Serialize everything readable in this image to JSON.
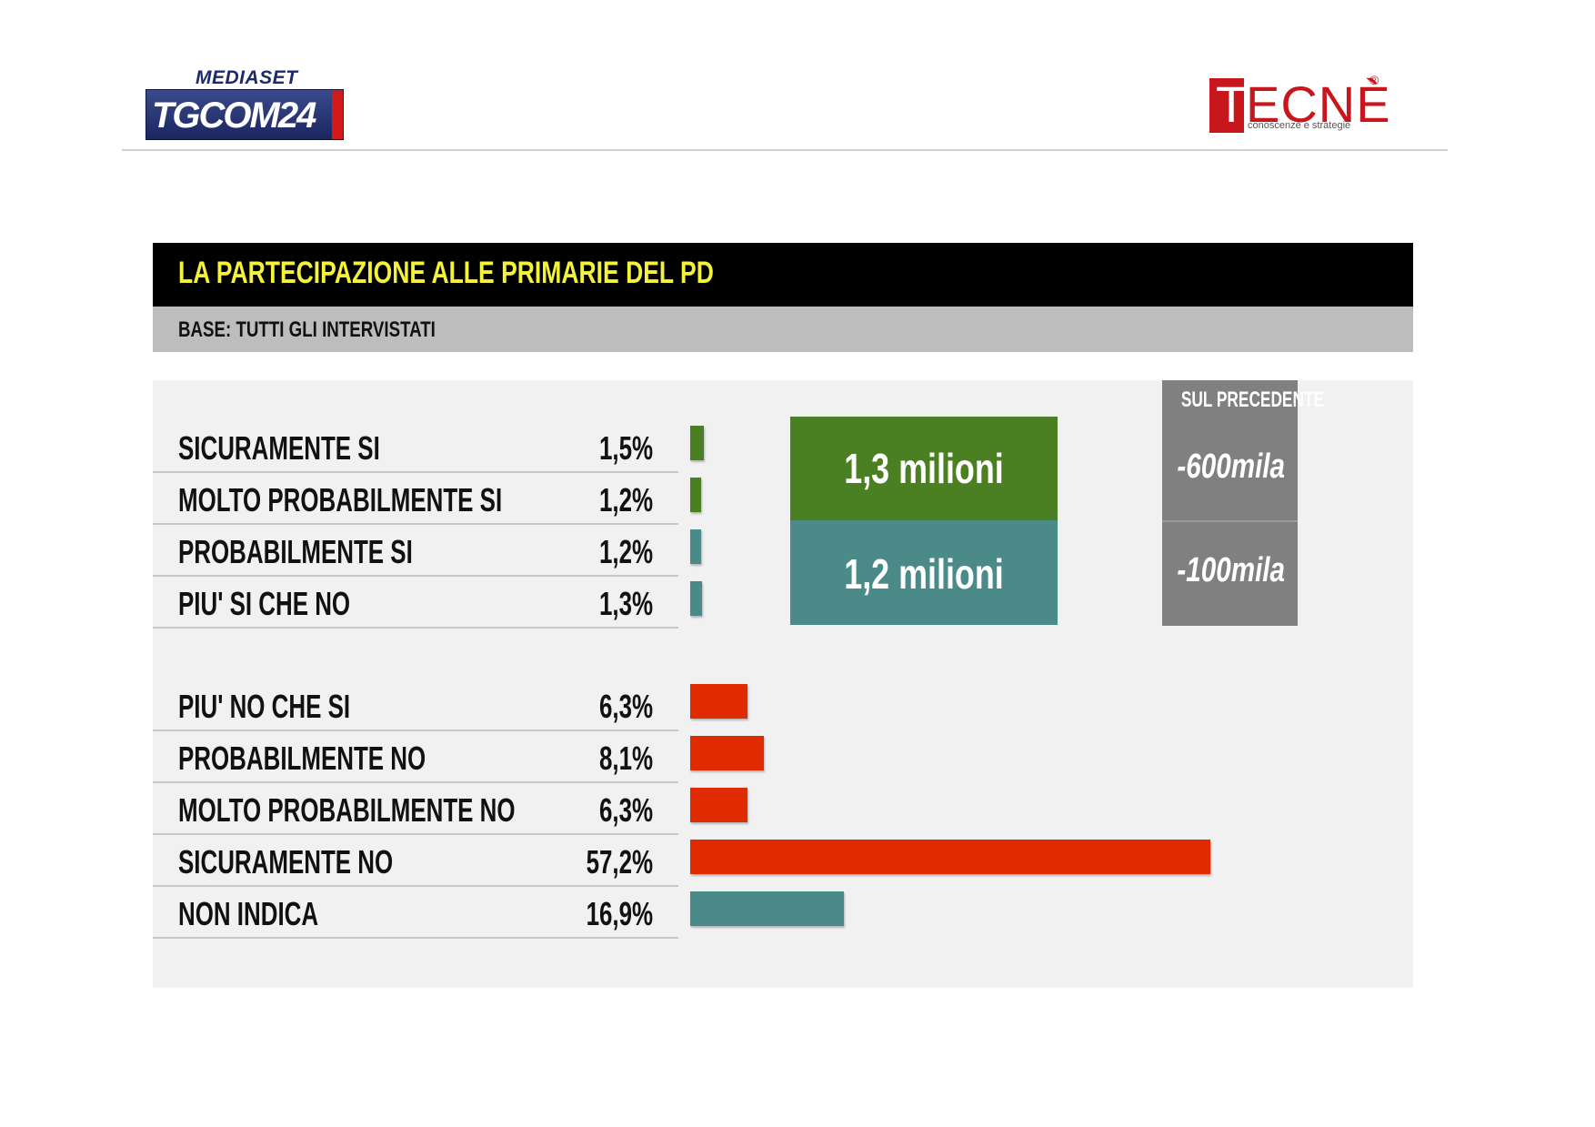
{
  "logos": {
    "left_top": "MEDIASET",
    "left_main": "TGCOM24",
    "right_main": "TECNÈ",
    "right_reg": "®",
    "right_sub": "conoscenze e strategie"
  },
  "header": {
    "title": "LA PARTECIPAZIONE ALLE PRIMARIE DEL PD",
    "base": "BASE: TUTTI GLI INTERVISTATI"
  },
  "colors": {
    "green": "#4a7f22",
    "teal": "#4a8a88",
    "red": "#e02a00",
    "gray": "#808080",
    "title_text": "#f4f23a"
  },
  "chart_data": {
    "type": "bar",
    "orientation": "horizontal",
    "categories": [
      "SICURAMENTE SI",
      "MOLTO PROBABILMENTE SI",
      "PROBABILMENTE SI",
      "PIU' SI CHE NO",
      "PIU' NO CHE SI",
      "PROBABILMENTE NO",
      "MOLTO PROBABILMENTE NO",
      "SICURAMENTE NO",
      "NON INDICA"
    ],
    "values": [
      1.5,
      1.2,
      1.2,
      1.3,
      6.3,
      8.1,
      6.3,
      57.2,
      16.9
    ],
    "value_labels": [
      "1,5%",
      "1,2%",
      "1,2%",
      "1,3%",
      "6,3%",
      "8,1%",
      "6,3%",
      "57,2%",
      "16,9%"
    ],
    "bar_colors": [
      "green",
      "green",
      "teal",
      "teal",
      "red",
      "red",
      "red",
      "red",
      "teal"
    ],
    "xlim": [
      0,
      60
    ]
  },
  "estimates": [
    {
      "label": "1,3 milioni",
      "change": "-600mila",
      "color": "green"
    },
    {
      "label": "1,2 milioni",
      "change": "-100mila",
      "color": "teal"
    }
  ],
  "prev_header": "SUL PRECEDENTE"
}
